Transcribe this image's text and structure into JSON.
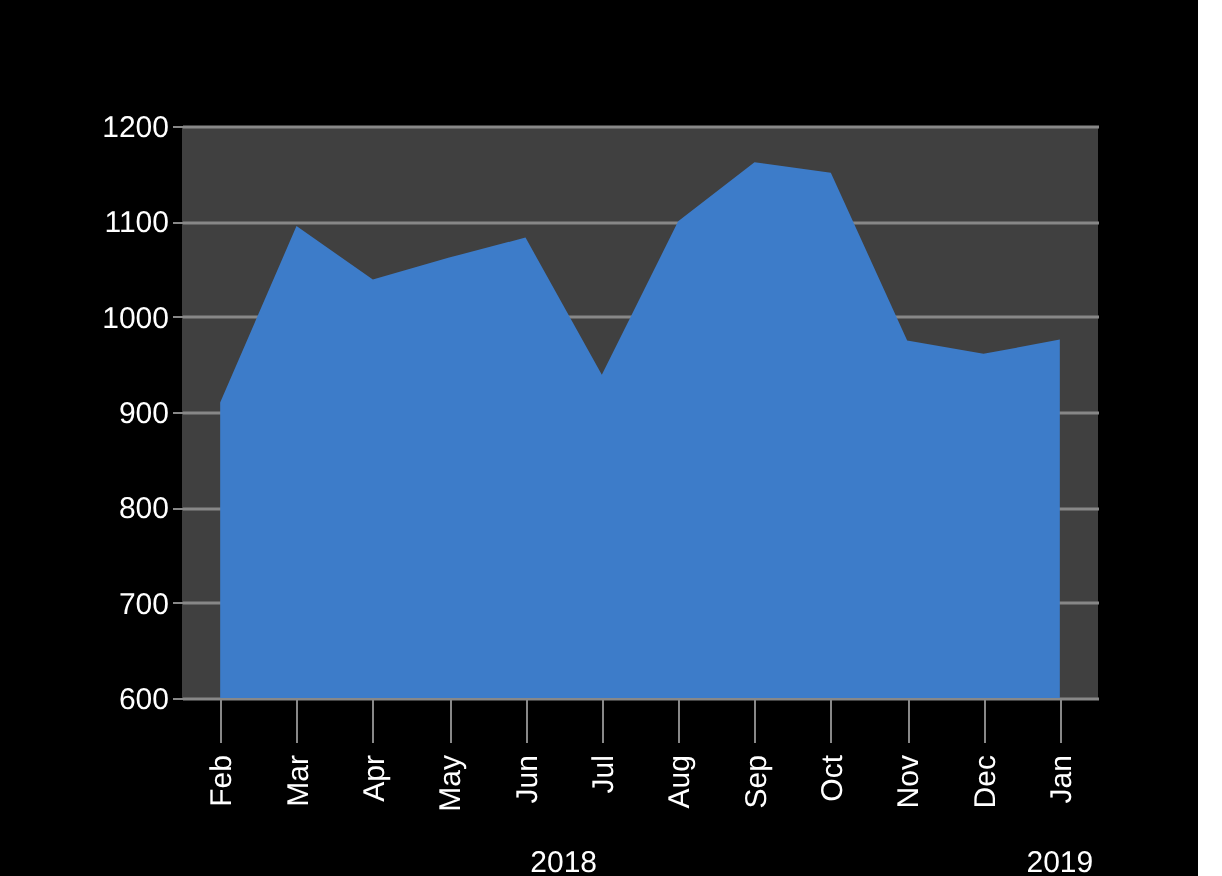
{
  "chart_data": {
    "type": "area",
    "categories": [
      "Feb",
      "Mar",
      "Apr",
      "May",
      "Jun",
      "Jul",
      "Aug",
      "Sep",
      "Oct",
      "Nov",
      "Dec",
      "Jan"
    ],
    "series": [
      {
        "color": "#3d7cc9",
        "values": [
          910,
          1095,
          1039,
          1062,
          1083,
          939,
          1100,
          1162,
          1151,
          975,
          961,
          976
        ]
      }
    ],
    "ylim": [
      600,
      1200
    ],
    "yticks": [
      600,
      700,
      800,
      900,
      1000,
      1100,
      1200
    ],
    "grid": "y",
    "annotations": [
      "2018",
      "2019"
    ]
  }
}
